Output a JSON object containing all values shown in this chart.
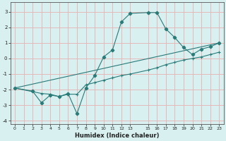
{
  "xlabel": "Humidex (Indice chaleur)",
  "bg_color": "#d8f0f0",
  "grid_color": "#e8b0b0",
  "line_color": "#2a7a78",
  "xlim": [
    -0.5,
    23.5
  ],
  "ylim": [
    -4.2,
    3.6
  ],
  "xticks": [
    0,
    1,
    2,
    3,
    4,
    5,
    6,
    7,
    8,
    9,
    10,
    11,
    12,
    13,
    15,
    16,
    17,
    18,
    19,
    20,
    21,
    22,
    23
  ],
  "yticks": [
    -4,
    -3,
    -2,
    -1,
    0,
    1,
    2,
    3
  ],
  "line1_x": [
    0,
    2,
    3,
    4,
    5,
    6,
    7,
    8,
    9,
    10,
    11,
    12,
    13,
    15,
    16,
    17,
    18,
    19,
    20,
    21,
    22,
    23
  ],
  "line1_y": [
    -1.9,
    -2.1,
    -2.85,
    -2.35,
    -2.45,
    -2.25,
    -3.55,
    -1.9,
    -1.1,
    0.1,
    0.55,
    2.35,
    2.9,
    2.95,
    2.95,
    1.9,
    1.35,
    0.7,
    0.25,
    0.6,
    0.75,
    1.0
  ],
  "line2_x": [
    0,
    3,
    4,
    5,
    6,
    7,
    8,
    9,
    10,
    11,
    12,
    13,
    15,
    16,
    17,
    18,
    19,
    20,
    21,
    22,
    23
  ],
  "line2_y": [
    -1.9,
    -2.25,
    -2.3,
    -2.45,
    -2.3,
    -2.3,
    -1.7,
    -1.55,
    -1.4,
    -1.25,
    -1.1,
    -1.0,
    -0.75,
    -0.6,
    -0.4,
    -0.25,
    -0.1,
    0.0,
    0.1,
    0.25,
    0.4
  ],
  "line3_x": [
    0,
    23
  ],
  "line3_y": [
    -1.9,
    1.0
  ],
  "marker_size": 2.8
}
